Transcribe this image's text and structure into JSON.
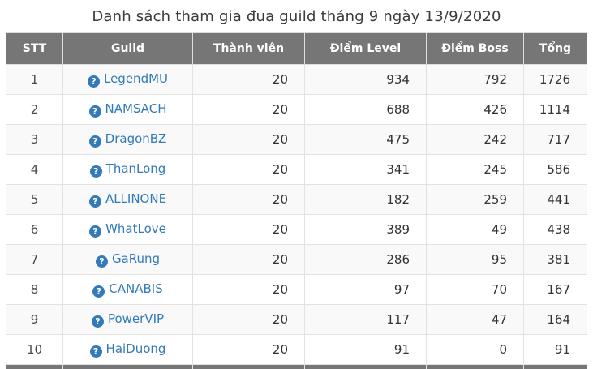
{
  "title": "Danh sách tham gia đua guild tháng 9 ngày 13/9/2020",
  "icons": {
    "question_glyph": "?"
  },
  "colors": {
    "header_bg": "#767676",
    "header_text": "#ffffff",
    "link_blue": "#337ab7",
    "stripe_row": "#f9f9f9",
    "border": "#e2e2e2",
    "title_text": "#3b3b3b"
  },
  "table": {
    "columns": [
      {
        "key": "stt",
        "label": "STT"
      },
      {
        "key": "guild",
        "label": "Guild"
      },
      {
        "key": "members",
        "label": "Thành viên"
      },
      {
        "key": "level",
        "label": "Điểm Level"
      },
      {
        "key": "boss",
        "label": "Điểm Boss"
      },
      {
        "key": "total",
        "label": "Tổng"
      }
    ],
    "rows": [
      {
        "stt": "1",
        "guild": "LegendMU",
        "members": "20",
        "level": "934",
        "boss": "792",
        "total": "1726"
      },
      {
        "stt": "2",
        "guild": "NAMSACH",
        "members": "20",
        "level": "688",
        "boss": "426",
        "total": "1114"
      },
      {
        "stt": "3",
        "guild": "DragonBZ",
        "members": "20",
        "level": "475",
        "boss": "242",
        "total": "717"
      },
      {
        "stt": "4",
        "guild": "ThanLong",
        "members": "20",
        "level": "341",
        "boss": "245",
        "total": "586"
      },
      {
        "stt": "5",
        "guild": "ALLINONE",
        "members": "20",
        "level": "182",
        "boss": "259",
        "total": "441"
      },
      {
        "stt": "6",
        "guild": "WhatLove",
        "members": "20",
        "level": "389",
        "boss": "49",
        "total": "438"
      },
      {
        "stt": "7",
        "guild": "GaRung",
        "members": "20",
        "level": "286",
        "boss": "95",
        "total": "381"
      },
      {
        "stt": "8",
        "guild": "CANABIS",
        "members": "20",
        "level": "97",
        "boss": "70",
        "total": "167"
      },
      {
        "stt": "9",
        "guild": "PowerVIP",
        "members": "20",
        "level": "117",
        "boss": "47",
        "total": "164"
      },
      {
        "stt": "10",
        "guild": "HaiDuong",
        "members": "20",
        "level": "91",
        "boss": "0",
        "total": "91"
      }
    ]
  }
}
